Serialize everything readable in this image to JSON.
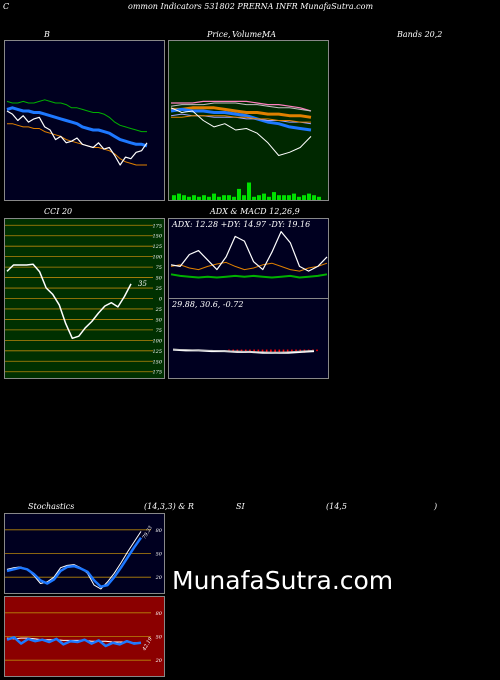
{
  "header": {
    "c": "C",
    "title": "ommon  Indicators 531802  PRERNA INFR MunafaSutra.com"
  },
  "labels": {
    "b": "B",
    "price": "Price,",
    "volume": "Volume,",
    "ma": "MA",
    "bands": "Bands 20,2",
    "cci": "CCI 20",
    "adx_macd": "ADX   & MACD 12,26,9",
    "adx_values": "ADX: 12.28  +DY: 14.97 -DY: 19.16",
    "macd_values": "29.88,  30.6,  -0.72",
    "stoch": "Stochastics",
    "stoch_params": "(14,3,3) & R",
    "si": "SI",
    "rsi_params": "(14,5",
    "close_paren": ")"
  },
  "watermark": "MunafaSutra.com",
  "colors": {
    "bb_bg": "#000020",
    "ma_bg": "#002800",
    "cci_bg": "#003000",
    "adx_bg": "#000020",
    "macd_bg": "#000020",
    "stoch_bg": "#000020",
    "rsi_bg": "#8b0000",
    "grid_gold": "#b8860b",
    "blue": "#1e78ff",
    "orange": "#e08000",
    "green": "#00b000",
    "white": "#ffffff",
    "pink": "#ff80c0",
    "volume_green": "#00e000",
    "red": "#ff0000"
  },
  "chart_data": [
    {
      "id": "bollinger",
      "type": "line",
      "title": "B",
      "series": [
        {
          "values": [
            0.62,
            0.61,
            0.61,
            0.62,
            0.61,
            0.61,
            0.62,
            0.63,
            0.62,
            0.61,
            0.61,
            0.6,
            0.58,
            0.58,
            0.57,
            0.56,
            0.55,
            0.55,
            0.54,
            0.52,
            0.49,
            0.47,
            0.46,
            0.45,
            0.44,
            0.43,
            0.43
          ]
        },
        {
          "values": [
            0.57,
            0.58,
            0.57,
            0.56,
            0.56,
            0.55,
            0.55,
            0.54,
            0.53,
            0.52,
            0.51,
            0.5,
            0.49,
            0.48,
            0.46,
            0.45,
            0.44,
            0.44,
            0.43,
            0.42,
            0.4,
            0.38,
            0.37,
            0.36,
            0.35,
            0.35,
            0.34
          ]
        },
        {
          "values": [
            0.48,
            0.48,
            0.47,
            0.46,
            0.46,
            0.45,
            0.45,
            0.43,
            0.42,
            0.41,
            0.4,
            0.38,
            0.37,
            0.36,
            0.35,
            0.34,
            0.33,
            0.33,
            0.32,
            0.31,
            0.29,
            0.26,
            0.24,
            0.23,
            0.22,
            0.22,
            0.22
          ]
        },
        {
          "values": [
            0.56,
            0.54,
            0.5,
            0.53,
            0.49,
            0.51,
            0.52,
            0.46,
            0.44,
            0.38,
            0.4,
            0.36,
            0.37,
            0.39,
            0.35,
            0.34,
            0.33,
            0.36,
            0.32,
            0.33,
            0.28,
            0.22,
            0.27,
            0.26,
            0.3,
            0.31,
            0.36
          ]
        }
      ]
    },
    {
      "id": "price_ma",
      "type": "line",
      "title": "Price, Volume, MA",
      "series": [
        {
          "values": [
            0.61,
            0.61,
            0.61,
            0.62,
            0.62,
            0.62,
            0.62,
            0.62,
            0.61,
            0.6,
            0.6,
            0.59,
            0.58,
            0.56
          ]
        },
        {
          "values": [
            0.59,
            0.6,
            0.6,
            0.6,
            0.61,
            0.61,
            0.61,
            0.6,
            0.6,
            0.59,
            0.58,
            0.58,
            0.57,
            0.56
          ]
        },
        {
          "values": [
            0.57,
            0.57,
            0.58,
            0.58,
            0.58,
            0.57,
            0.56,
            0.55,
            0.55,
            0.54,
            0.54,
            0.53,
            0.53,
            0.52
          ]
        },
        {
          "values": [
            0.56,
            0.57,
            0.56,
            0.56,
            0.55,
            0.55,
            0.54,
            0.53,
            0.51,
            0.49,
            0.48,
            0.46,
            0.45,
            0.44
          ]
        },
        {
          "values": [
            0.53,
            0.54,
            0.53,
            0.53,
            0.52,
            0.52,
            0.52,
            0.51,
            0.51,
            0.5,
            0.5,
            0.49,
            0.49,
            0.48
          ]
        },
        {
          "values": [
            0.52,
            0.52,
            0.53,
            0.53,
            0.53,
            0.53,
            0.52,
            0.52,
            0.51,
            0.51,
            0.5,
            0.5,
            0.49,
            0.49
          ]
        },
        {
          "values": [
            0.58,
            0.55,
            0.56,
            0.5,
            0.46,
            0.48,
            0.44,
            0.45,
            0.42,
            0.36,
            0.28,
            0.3,
            0.33,
            0.4
          ]
        }
      ],
      "volume": [
        0.03,
        0.04,
        0.03,
        0.02,
        0.03,
        0.02,
        0.03,
        0.02,
        0.04,
        0.02,
        0.03,
        0.03,
        0.02,
        0.07,
        0.03,
        0.11,
        0.02,
        0.03,
        0.04,
        0.02,
        0.05,
        0.03,
        0.03,
        0.03,
        0.04,
        0.02,
        0.03,
        0.04,
        0.03,
        0.02
      ]
    },
    {
      "id": "cci",
      "type": "line",
      "title": "CCI 20",
      "y_ticks": [
        175,
        150,
        125,
        100,
        75,
        50,
        25,
        0,
        -25,
        -50,
        -75,
        -100,
        -125,
        -150,
        -175
      ],
      "y_tick_labels": [
        "175",
        "150",
        "125",
        "100",
        "75",
        "50",
        "25",
        "0",
        "25",
        "50",
        "75",
        "100",
        "125",
        "150",
        "175"
      ],
      "ylim": [
        -190,
        190
      ],
      "values": [
        65,
        80,
        80,
        80,
        82,
        64,
        25,
        10,
        -15,
        -60,
        -95,
        -90,
        -70,
        -55,
        -35,
        -18,
        -10,
        -20,
        5,
        35
      ],
      "last_label": "35"
    },
    {
      "id": "adx",
      "type": "line",
      "title": "ADX & MACD 12,26,9",
      "series": [
        {
          "name": "+DY",
          "values": [
            0.3,
            0.28,
            0.27,
            0.26,
            0.27,
            0.26,
            0.27,
            0.28,
            0.27,
            0.28,
            0.27,
            0.26,
            0.27,
            0.28,
            0.26,
            0.27,
            0.28,
            0.3
          ]
        },
        {
          "name": "-DY",
          "values": [
            0.4,
            0.42,
            0.38,
            0.36,
            0.4,
            0.43,
            0.45,
            0.4,
            0.36,
            0.38,
            0.42,
            0.44,
            0.4,
            0.36,
            0.34,
            0.38,
            0.4,
            0.44
          ]
        },
        {
          "name": "ADX",
          "values": [
            0.42,
            0.4,
            0.55,
            0.6,
            0.48,
            0.36,
            0.52,
            0.78,
            0.72,
            0.46,
            0.36,
            0.58,
            0.84,
            0.7,
            0.4,
            0.34,
            0.4,
            0.52
          ]
        }
      ]
    },
    {
      "id": "macd",
      "type": "line",
      "series": [
        {
          "values": [
            0.36,
            0.35,
            0.35,
            0.34,
            0.34,
            0.33,
            0.33,
            0.32,
            0.32,
            0.32,
            0.33,
            0.34
          ]
        },
        {
          "values": [
            0.36,
            0.36,
            0.35,
            0.35,
            0.34,
            0.34,
            0.33,
            0.33,
            0.32,
            0.33,
            0.34,
            0.35
          ]
        }
      ],
      "histogram": [
        0.01,
        0.02,
        0.03,
        0.03,
        0.04,
        0.04,
        0.04,
        0.04,
        0.05,
        0.05,
        0.05,
        0.05,
        0.05,
        0.05,
        0.05,
        0.05,
        0.04,
        0.04,
        0.04,
        0.03,
        0.03,
        0.02
      ]
    },
    {
      "id": "stochastics",
      "type": "line",
      "title": "Stochastics (14,3,3)",
      "y_ticks": [
        80,
        50,
        20
      ],
      "ylim": [
        0,
        100
      ],
      "series": [
        {
          "values": [
            30,
            32,
            33,
            30,
            22,
            12,
            14,
            20,
            32,
            35,
            36,
            32,
            25,
            10,
            5,
            14,
            25,
            38,
            52,
            65,
            78
          ]
        },
        {
          "values": [
            28,
            30,
            32,
            30,
            24,
            16,
            12,
            17,
            28,
            33,
            34,
            31,
            27,
            16,
            8,
            10,
            20,
            32,
            45,
            58,
            70
          ]
        }
      ],
      "last_label": "79.33"
    },
    {
      "id": "rsi",
      "type": "line",
      "title": "RSI (14,5)",
      "y_ticks": [
        80,
        50,
        20
      ],
      "ylim": [
        0,
        100
      ],
      "series": [
        {
          "values": [
            48,
            47,
            48,
            48,
            47,
            46,
            46,
            46,
            45,
            45,
            45,
            45,
            44,
            44,
            44,
            43,
            43,
            43,
            42,
            42
          ]
        },
        {
          "values": [
            46,
            49,
            41,
            47,
            44,
            46,
            43,
            47,
            40,
            44,
            43,
            46,
            41,
            45,
            38,
            42,
            40,
            44,
            41,
            42
          ]
        }
      ],
      "last_label": "42.19"
    }
  ]
}
